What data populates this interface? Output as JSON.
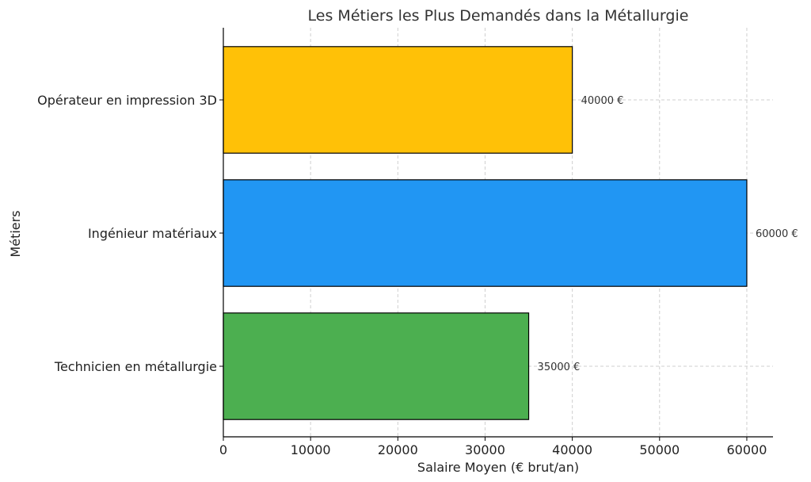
{
  "chart_data": {
    "type": "bar",
    "orientation": "horizontal",
    "title": "Les Métiers les Plus Demandés dans la Métallurgie",
    "xlabel": "Salaire Moyen (€ brut/an)",
    "ylabel": "Métiers",
    "categories": [
      "Technicien en métallurgie",
      "Ingénieur matériaux",
      "Opérateur en impression 3D"
    ],
    "values": [
      35000,
      60000,
      40000
    ],
    "data_labels": [
      "35000 €",
      "60000 €",
      "40000 €"
    ],
    "colors": [
      "#4caf50",
      "#2196f3",
      "#ffc107"
    ],
    "xlim": [
      0,
      63000
    ],
    "xticks": [
      0,
      10000,
      20000,
      30000,
      40000,
      50000,
      60000
    ],
    "grid": true
  }
}
